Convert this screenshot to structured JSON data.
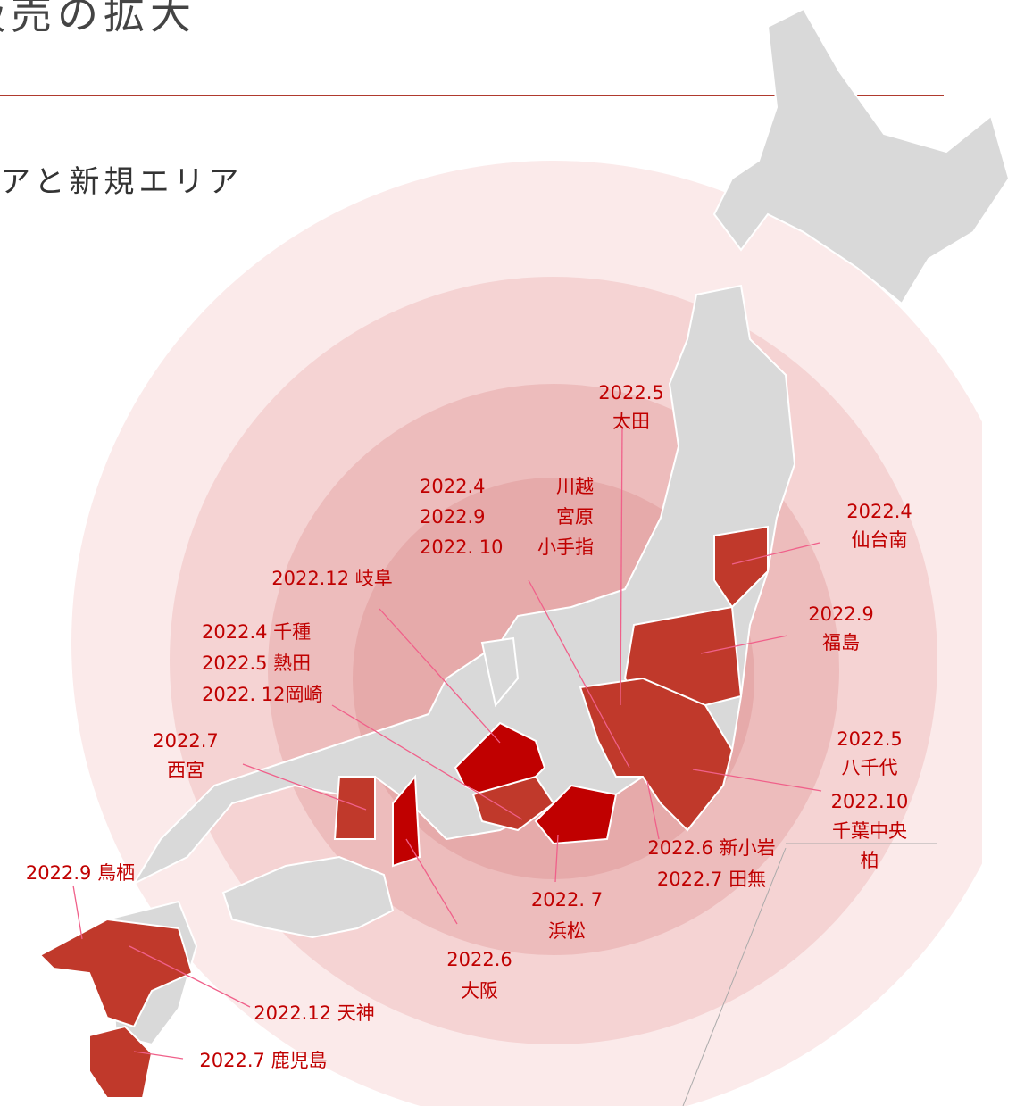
{
  "header": {
    "title": "販売の拡大",
    "subtitle": "アと新規エリア"
  },
  "labels": [
    {
      "lines": [
        "2022.5",
        "太田"
      ]
    },
    {
      "lines": [
        "2022.4",
        "2022.9",
        "2022. 10"
      ]
    },
    {
      "lines": [
        "川越",
        "宮原",
        "小手指"
      ]
    },
    {
      "lines": [
        "2022.4",
        "仙台南"
      ]
    },
    {
      "lines": [
        "2022.12 岐阜"
      ]
    },
    {
      "lines": [
        "2022.9",
        "福島"
      ]
    },
    {
      "lines": [
        "2022.4  千種",
        "2022.5  熱田",
        "2022. 12岡崎"
      ]
    },
    {
      "lines": [
        "2022.7",
        "西宮"
      ]
    },
    {
      "lines": [
        "2022.5",
        "八千代"
      ]
    },
    {
      "lines": [
        "2022.10",
        "千葉中央",
        "柏"
      ]
    },
    {
      "lines": [
        "2022.6 新小岩",
        "2022.7 田無"
      ]
    },
    {
      "lines": [
        "2022.9 鳥栖"
      ]
    },
    {
      "lines": [
        "2022. 7",
        "浜松"
      ]
    },
    {
      "lines": [
        "2022.6",
        "大阪"
      ]
    },
    {
      "lines": [
        "2022.12 天神"
      ]
    },
    {
      "lines": [
        "2022.7 鹿児島"
      ]
    }
  ]
}
